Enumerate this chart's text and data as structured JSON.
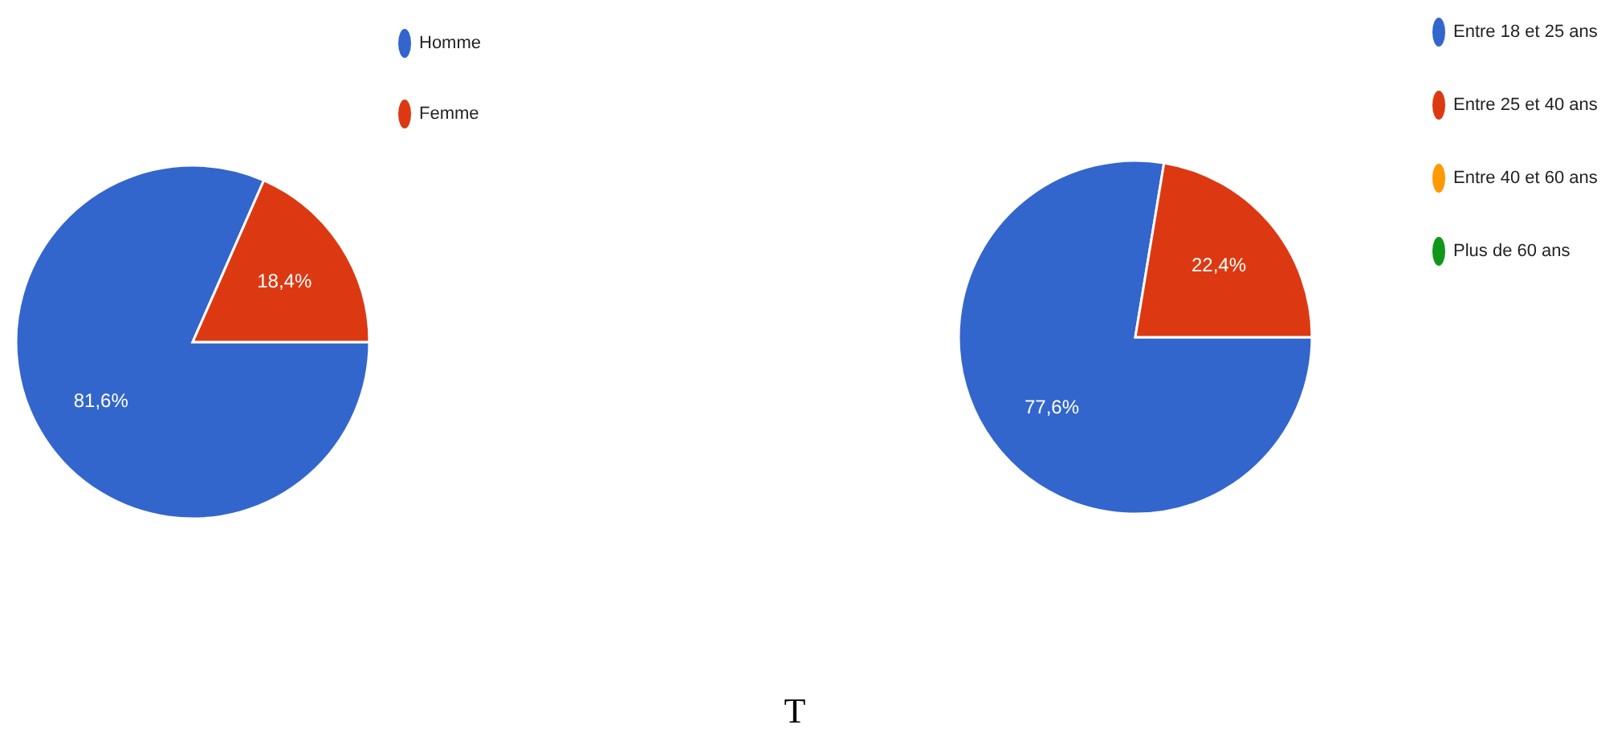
{
  "chart_data": [
    {
      "type": "pie",
      "categories": [
        "Homme",
        "Femme"
      ],
      "values": [
        81.6,
        18.4
      ],
      "colors": [
        "#3366cc",
        "#dc3912"
      ],
      "value_labels": [
        "81,6%",
        "18,4%"
      ],
      "legend": "right"
    },
    {
      "type": "pie",
      "categories": [
        "Entre 18 et 25 ans",
        "Entre 25 et 40 ans",
        "Entre 40 et 60 ans",
        "Plus de 60 ans"
      ],
      "values": [
        77.6,
        22.4,
        0,
        0
      ],
      "colors": [
        "#3366cc",
        "#dc3912",
        "#ff9900",
        "#109618"
      ],
      "value_labels": [
        "77,6%",
        "22,4%",
        null,
        null
      ],
      "legend": "right",
      "annotations": [
        "T"
      ]
    }
  ]
}
